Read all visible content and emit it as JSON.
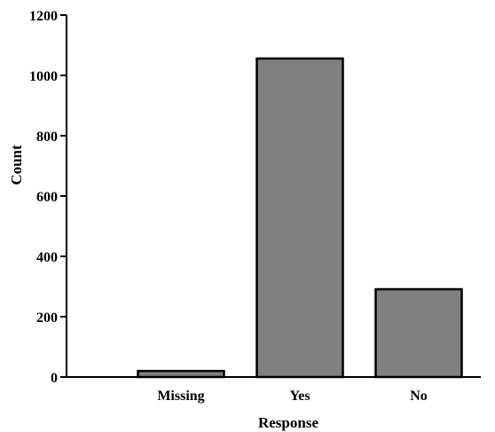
{
  "chart_data": {
    "type": "bar",
    "categories": [
      "Missing",
      "Yes",
      "No"
    ],
    "values": [
      20,
      1056,
      291
    ],
    "xlabel": "Response",
    "ylabel": "Count",
    "ylim": [
      0,
      1200
    ],
    "yticks": [
      0,
      200,
      400,
      600,
      800,
      1000,
      1200
    ],
    "grid": false,
    "legend": "none",
    "colors": {
      "bar": "#808080",
      "bar_outline": "#000000"
    }
  }
}
